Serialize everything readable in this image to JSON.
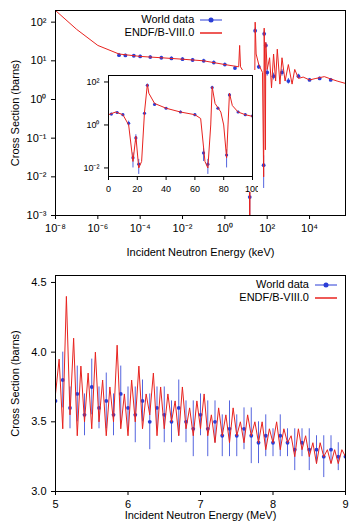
{
  "chart_data": [
    {
      "type": "line",
      "log": true,
      "x_label": "Incident Neutron Energy (keV)",
      "y_label": "Cross Section (barns)",
      "xlim": [
        1e-08,
        500000
      ],
      "ylim": [
        0.001,
        200
      ],
      "xticks": [
        {
          "value": 1e-08,
          "label": "10⁻⁸"
        },
        {
          "value": 1e-06,
          "label": "10⁻⁶"
        },
        {
          "value": 0.0001,
          "label": "10⁻⁴"
        },
        {
          "value": 0.01,
          "label": "10⁻²"
        },
        {
          "value": 1,
          "label": "10⁰"
        },
        {
          "value": 100,
          "label": "10²"
        },
        {
          "value": 10000,
          "label": "10⁴"
        }
      ],
      "yticks": [
        {
          "value": 0.001,
          "label": "10⁻³"
        },
        {
          "value": 0.01,
          "label": "10⁻²"
        },
        {
          "value": 0.1,
          "label": "10⁻¹"
        },
        {
          "value": 1,
          "label": "10⁰"
        },
        {
          "value": 10,
          "label": "10¹"
        },
        {
          "value": 100,
          "label": "10²"
        }
      ],
      "legend": "top",
      "series": [
        {
          "name": "World data",
          "type": "scatter",
          "marker": "circle",
          "color": "#2a3dd6",
          "x": [
            1e-05,
            2e-05,
            5e-05,
            0.0001,
            0.0003,
            0.001,
            0.003,
            0.01,
            0.03,
            0.1,
            0.3,
            1,
            3,
            10,
            15,
            20,
            27,
            40,
            68,
            72,
            86,
            100,
            200,
            500,
            1000,
            3000,
            10000,
            30000,
            100000
          ],
          "values": [
            14,
            13.8,
            13.5,
            13,
            12.5,
            12,
            11.5,
            11,
            10.5,
            10,
            9,
            8,
            6.5,
            3.5,
            0.003,
            0.5,
            60,
            7,
            0.02,
            50,
            25,
            5,
            4,
            5,
            3,
            4,
            3.2,
            3.5,
            3.2
          ],
          "errors": [
            1.5,
            1,
            1,
            1,
            1,
            1,
            1,
            1,
            1,
            1,
            1,
            0.8,
            0.7,
            0.5,
            0.002,
            0.3,
            10,
            1,
            0.015,
            8,
            4,
            1,
            0.8,
            1,
            0.5,
            0.5,
            0.3,
            0.3,
            0.3
          ]
        },
        {
          "name": "ENDF/B-VIII.0",
          "type": "line",
          "color": "#e8231f",
          "x": [
            1e-08,
            1e-07,
            1e-06,
            1e-05,
            0.0001,
            0.001,
            0.01,
            0.1,
            1,
            4.5,
            5,
            5.5,
            8,
            10,
            13,
            15,
            17,
            20,
            24,
            27,
            30,
            40,
            60,
            68,
            72,
            78,
            82,
            86,
            100,
            130,
            160,
            200,
            250,
            300,
            400,
            500,
            700,
            1000,
            1500,
            2000,
            3000,
            5000,
            10000,
            20000,
            50000,
            100000,
            200000,
            500000
          ],
          "values": [
            200,
            65,
            25,
            15,
            13,
            12,
            11,
            10,
            8,
            7,
            25,
            7,
            5,
            3,
            0.5,
            0.001,
            0.3,
            0.02,
            0.01,
            100,
            15,
            8,
            5,
            0.01,
            70,
            3,
            0.05,
            30,
            6,
            12,
            2,
            15,
            3,
            20,
            2.5,
            12,
            3,
            8,
            2.5,
            6,
            3.5,
            3.8,
            3.2,
            3.5,
            3.9,
            3.4,
            3,
            2.6
          ]
        }
      ]
    },
    {
      "type": "line",
      "log": "y",
      "xlim": [
        0,
        100
      ],
      "ylim": [
        0.004,
        200
      ],
      "xticks": [
        0,
        20,
        40,
        60,
        80,
        100
      ],
      "yticks": [
        {
          "value": 0.01,
          "label": "10⁻²"
        },
        {
          "value": 1,
          "label": "10⁰"
        },
        {
          "value": 100,
          "label": "10²"
        }
      ],
      "series": [
        {
          "type": "scatter",
          "marker": "circle",
          "color": "#2a3dd6",
          "x": [
            2,
            6,
            10,
            14,
            17,
            19,
            21,
            25,
            27,
            32,
            40,
            50,
            60,
            66,
            69,
            72,
            76,
            82,
            84,
            90,
            95,
            100
          ],
          "values": [
            3.2,
            3.8,
            3,
            1.2,
            0.03,
            0.25,
            0.015,
            3.5,
            70,
            9,
            6,
            4,
            3,
            0.05,
            0.015,
            55,
            6,
            0.04,
            25,
            4,
            3,
            2.6
          ],
          "errors": [
            0.3,
            0.4,
            0.3,
            0.3,
            0.02,
            0.1,
            0.01,
            0.5,
            10,
            1,
            0.5,
            0.4,
            0.3,
            0.03,
            0.01,
            8,
            0.8,
            0.03,
            4,
            0.4,
            0.3,
            0.3
          ]
        },
        {
          "type": "line",
          "color": "#e8231f",
          "x": [
            0,
            5,
            10,
            14,
            17,
            19,
            21,
            23,
            25,
            27,
            28,
            32,
            40,
            50,
            60,
            64,
            67,
            69,
            71,
            72,
            74,
            78,
            80,
            82,
            83,
            84,
            86,
            90,
            95,
            100
          ],
          "values": [
            3,
            4,
            3,
            1,
            0.02,
            0.3,
            0.01,
            0.02,
            4,
            80,
            30,
            10,
            6,
            4,
            3,
            2,
            0.02,
            0.01,
            1,
            60,
            10,
            4,
            1,
            0.03,
            1,
            30,
            8,
            4,
            3,
            2.5
          ]
        }
      ]
    },
    {
      "type": "line",
      "x_label": "Incident Neutron Energy (MeV)",
      "y_label": "Cross Section (barns)",
      "xlim": [
        5,
        9
      ],
      "ylim": [
        3,
        4.55
      ],
      "xticks": [
        5,
        6,
        7,
        8,
        9
      ],
      "yticks": [
        {
          "value": 3,
          "label": "3.0"
        },
        3.5,
        {
          "value": 4,
          "label": "4.0"
        },
        4.5
      ],
      "legend": "top-right",
      "series": [
        {
          "name": "World data",
          "type": "scatter",
          "marker": "circle",
          "color": "#2a3dd6",
          "x": [
            5,
            5.1,
            5.2,
            5.3,
            5.4,
            5.5,
            5.6,
            5.7,
            5.8,
            5.9,
            6,
            6.1,
            6.2,
            6.3,
            6.4,
            6.5,
            6.6,
            6.7,
            6.8,
            6.9,
            7,
            7.1,
            7.2,
            7.3,
            7.4,
            7.5,
            7.6,
            7.7,
            7.8,
            7.9,
            8,
            8.1,
            8.2,
            8.3,
            8.4,
            8.5,
            8.6,
            8.7,
            8.8,
            8.9,
            9
          ],
          "values": [
            3.65,
            3.8,
            3.6,
            3.7,
            3.55,
            3.75,
            3.6,
            3.65,
            3.55,
            3.7,
            3.6,
            3.55,
            3.65,
            3.5,
            3.6,
            3.55,
            3.5,
            3.6,
            3.5,
            3.45,
            3.55,
            3.45,
            3.5,
            3.4,
            3.45,
            3.4,
            3.45,
            3.4,
            3.35,
            3.4,
            3.35,
            3.4,
            3.35,
            3.3,
            3.35,
            3.3,
            3.3,
            3.25,
            3.3,
            3.25,
            3.25
          ],
          "errors": [
            0.15,
            0.2,
            0.15,
            0.2,
            0.15,
            0.2,
            0.15,
            0.2,
            0.15,
            0.2,
            0.15,
            0.2,
            0.15,
            0.2,
            0.15,
            0.2,
            0.15,
            0.2,
            0.15,
            0.2,
            0.15,
            0.2,
            0.15,
            0.15,
            0.2,
            0.15,
            0.15,
            0.2,
            0.15,
            0.15,
            0.1,
            0.15,
            0.1,
            0.15,
            0.1,
            0.15,
            0.1,
            0.15,
            0.1,
            0.1,
            0.1
          ]
        },
        {
          "name": "ENDF/B-VIII.0",
          "type": "line",
          "color": "#e8231f",
          "x": [
            5,
            5.05,
            5.1,
            5.15,
            5.2,
            5.25,
            5.3,
            5.35,
            5.4,
            5.45,
            5.5,
            5.55,
            5.6,
            5.65,
            5.7,
            5.75,
            5.8,
            5.85,
            5.9,
            5.95,
            6,
            6.05,
            6.1,
            6.15,
            6.2,
            6.25,
            6.3,
            6.35,
            6.4,
            6.45,
            6.5,
            6.55,
            6.6,
            6.65,
            6.7,
            6.75,
            6.8,
            6.85,
            6.9,
            6.95,
            7,
            7.05,
            7.1,
            7.15,
            7.2,
            7.25,
            7.3,
            7.35,
            7.4,
            7.45,
            7.5,
            7.55,
            7.6,
            7.65,
            7.7,
            7.75,
            7.8,
            7.85,
            7.9,
            7.95,
            8,
            8.05,
            8.1,
            8.15,
            8.2,
            8.25,
            8.3,
            8.35,
            8.4,
            8.45,
            8.5,
            8.55,
            8.6,
            8.65,
            8.7,
            8.75,
            8.8,
            8.85,
            8.9,
            8.95,
            9
          ],
          "values": [
            3.7,
            3.95,
            3.45,
            4.4,
            3.55,
            4.1,
            3.4,
            3.9,
            3.5,
            3.85,
            3.45,
            4,
            3.5,
            3.8,
            3.4,
            3.75,
            3.5,
            4.05,
            3.45,
            3.7,
            3.4,
            3.8,
            3.5,
            3.9,
            3.45,
            3.7,
            3.55,
            3.85,
            3.4,
            3.75,
            3.45,
            3.7,
            3.5,
            3.65,
            3.4,
            3.75,
            3.45,
            3.6,
            3.4,
            3.65,
            3.45,
            3.7,
            3.4,
            3.55,
            3.35,
            3.6,
            3.4,
            3.55,
            3.35,
            3.6,
            3.4,
            3.5,
            3.35,
            3.55,
            3.4,
            3.5,
            3.35,
            3.5,
            3.3,
            3.45,
            3.35,
            3.5,
            3.3,
            3.45,
            3.35,
            3.4,
            3.25,
            3.45,
            3.3,
            3.4,
            3.25,
            3.35,
            3.2,
            3.35,
            3.25,
            3.3,
            3.2,
            3.3,
            3.2,
            3.3,
            3.25
          ]
        }
      ]
    }
  ]
}
